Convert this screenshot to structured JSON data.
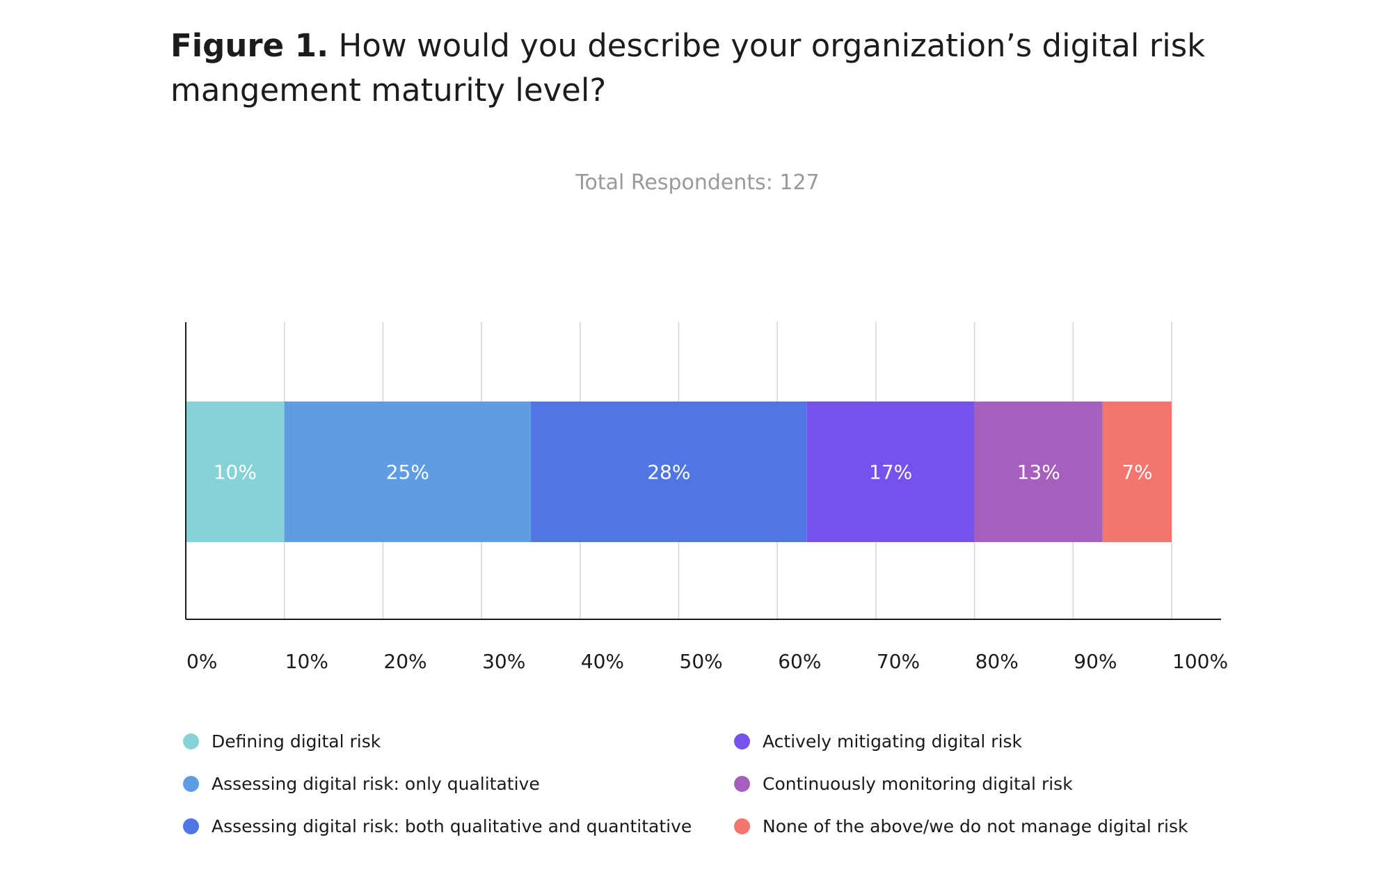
{
  "title": {
    "figure_label": "Figure 1.",
    "question": "How would you describe your organization’s digital risk mangement maturity level?"
  },
  "subtitle": "Total Respondents: 127",
  "chart_data": {
    "type": "bar",
    "orientation": "horizontal",
    "stacked": true,
    "title": "Figure 1. How would you describe your organization’s digital risk mangement maturity level?",
    "subtitle": "Total Respondents: 127",
    "xlabel": "",
    "ylabel": "",
    "xlim": [
      0,
      100
    ],
    "x_ticks": [
      "0%",
      "10%",
      "20%",
      "30%",
      "40%",
      "50%",
      "60%",
      "70%",
      "80%",
      "90%",
      "100%"
    ],
    "grid": "vertical",
    "legend_position": "bottom",
    "series": [
      {
        "name": "Defining digital risk",
        "value": 10,
        "label": "10%",
        "color": "#86d3d7"
      },
      {
        "name": "Assessing digital risk: only qualitative",
        "value": 25,
        "label": "25%",
        "color": "#5e9de3"
      },
      {
        "name": "Assessing digital risk: both qualitative and quantitative",
        "value": 28,
        "label": "28%",
        "color": "#4f76e2"
      },
      {
        "name": "Actively mitigating digital risk",
        "value": 17,
        "label": "17%",
        "color": "#7652ec"
      },
      {
        "name": "Continuously monitoring digital risk",
        "value": 13,
        "label": "13%",
        "color": "#a75fbd"
      },
      {
        "name": "None of the above/we do not manage digital risk",
        "value": 7,
        "label": "7%",
        "color": "#f2766d"
      }
    ]
  }
}
